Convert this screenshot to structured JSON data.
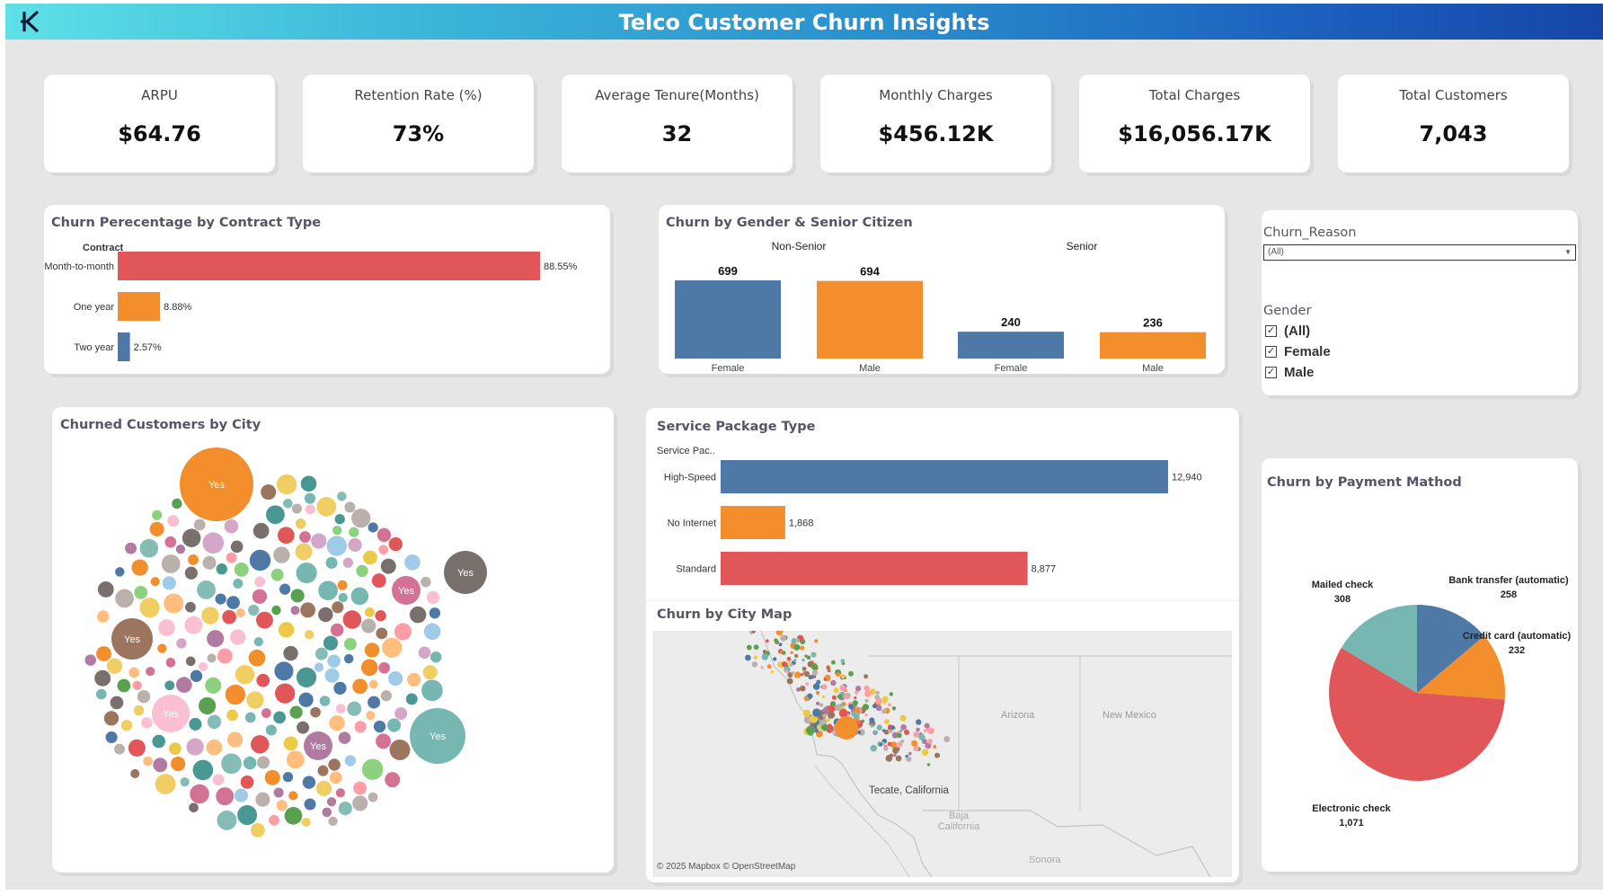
{
  "header": {
    "title": "Telco Customer Churn Insights",
    "logo_icon": "k-logo-icon"
  },
  "kpis": [
    {
      "label": "ARPU",
      "value": "$64.76"
    },
    {
      "label": "Retention Rate (%)",
      "value": "73%"
    },
    {
      "label": "Average Tenure(Months)",
      "value": "32"
    },
    {
      "label": "Monthly Charges",
      "value": "$456.12K"
    },
    {
      "label": "Total Charges",
      "value": "$16,056.17K"
    },
    {
      "label": "Total Customers",
      "value": "7,043"
    }
  ],
  "contract_panel": {
    "title": "Churn Perecentage by Contract Type",
    "header_label": "Contract"
  },
  "gender_panel": {
    "title": "Churn by Gender & Senior Citizen"
  },
  "filters": {
    "churn_reason": {
      "label": "Churn_Reason",
      "selected": "(All)"
    },
    "gender": {
      "label": "Gender",
      "options": [
        "(All)",
        "Female",
        "Male"
      ]
    }
  },
  "city_panel": {
    "title": "Churned Customers by City",
    "bubble_label": "Yes"
  },
  "service_panel": {
    "title": "Service Package Type",
    "header_label": "Service Pac.."
  },
  "map_panel": {
    "title": "Churn by City Map",
    "labels": [
      "Arizona",
      "New Mexico",
      "Baja California",
      "Sonora",
      "Tecate, California"
    ],
    "attribution": "© 2025 Mapbox  © OpenStreetMap"
  },
  "payment_panel": {
    "title": "Churn by Payment Mathod"
  },
  "colors": {
    "blue": "#4e79a7",
    "orange": "#f28e2b",
    "red": "#e15759",
    "teal": "#76b7b2"
  },
  "chart_data": [
    {
      "type": "bar",
      "orientation": "horizontal",
      "categories": [
        "Month-to-month",
        "One year",
        "Two year"
      ],
      "values": [
        88.55,
        8.88,
        2.57
      ],
      "value_labels": [
        "88.55%",
        "8.88%",
        "2.57%"
      ],
      "colors": [
        "#e15759",
        "#f28e2b",
        "#4e79a7"
      ]
    },
    {
      "type": "bar",
      "groups": [
        "Non-Senior",
        "Senior"
      ],
      "categories": [
        "Female",
        "Male"
      ],
      "series": [
        {
          "values": [
            699,
            694
          ]
        },
        {
          "values": [
            240,
            236
          ]
        }
      ],
      "colors": [
        "#4e79a7",
        "#f28e2b"
      ]
    },
    {
      "type": "bar",
      "orientation": "horizontal",
      "categories": [
        "High-Speed",
        "No Internet",
        "Standard"
      ],
      "values": [
        12940,
        1868,
        8877
      ],
      "value_labels": [
        "12,940",
        "1,868",
        "8,877"
      ],
      "colors": [
        "#4e79a7",
        "#f28e2b",
        "#e15759"
      ]
    },
    {
      "type": "pie",
      "categories": [
        "Bank transfer (automatic)",
        "Credit card (automatic)",
        "Electronic check",
        "Mailed check"
      ],
      "values": [
        258,
        232,
        1071,
        308
      ],
      "colors": [
        "#4e79a7",
        "#f28e2b",
        "#e15759",
        "#76b7b2"
      ]
    }
  ]
}
